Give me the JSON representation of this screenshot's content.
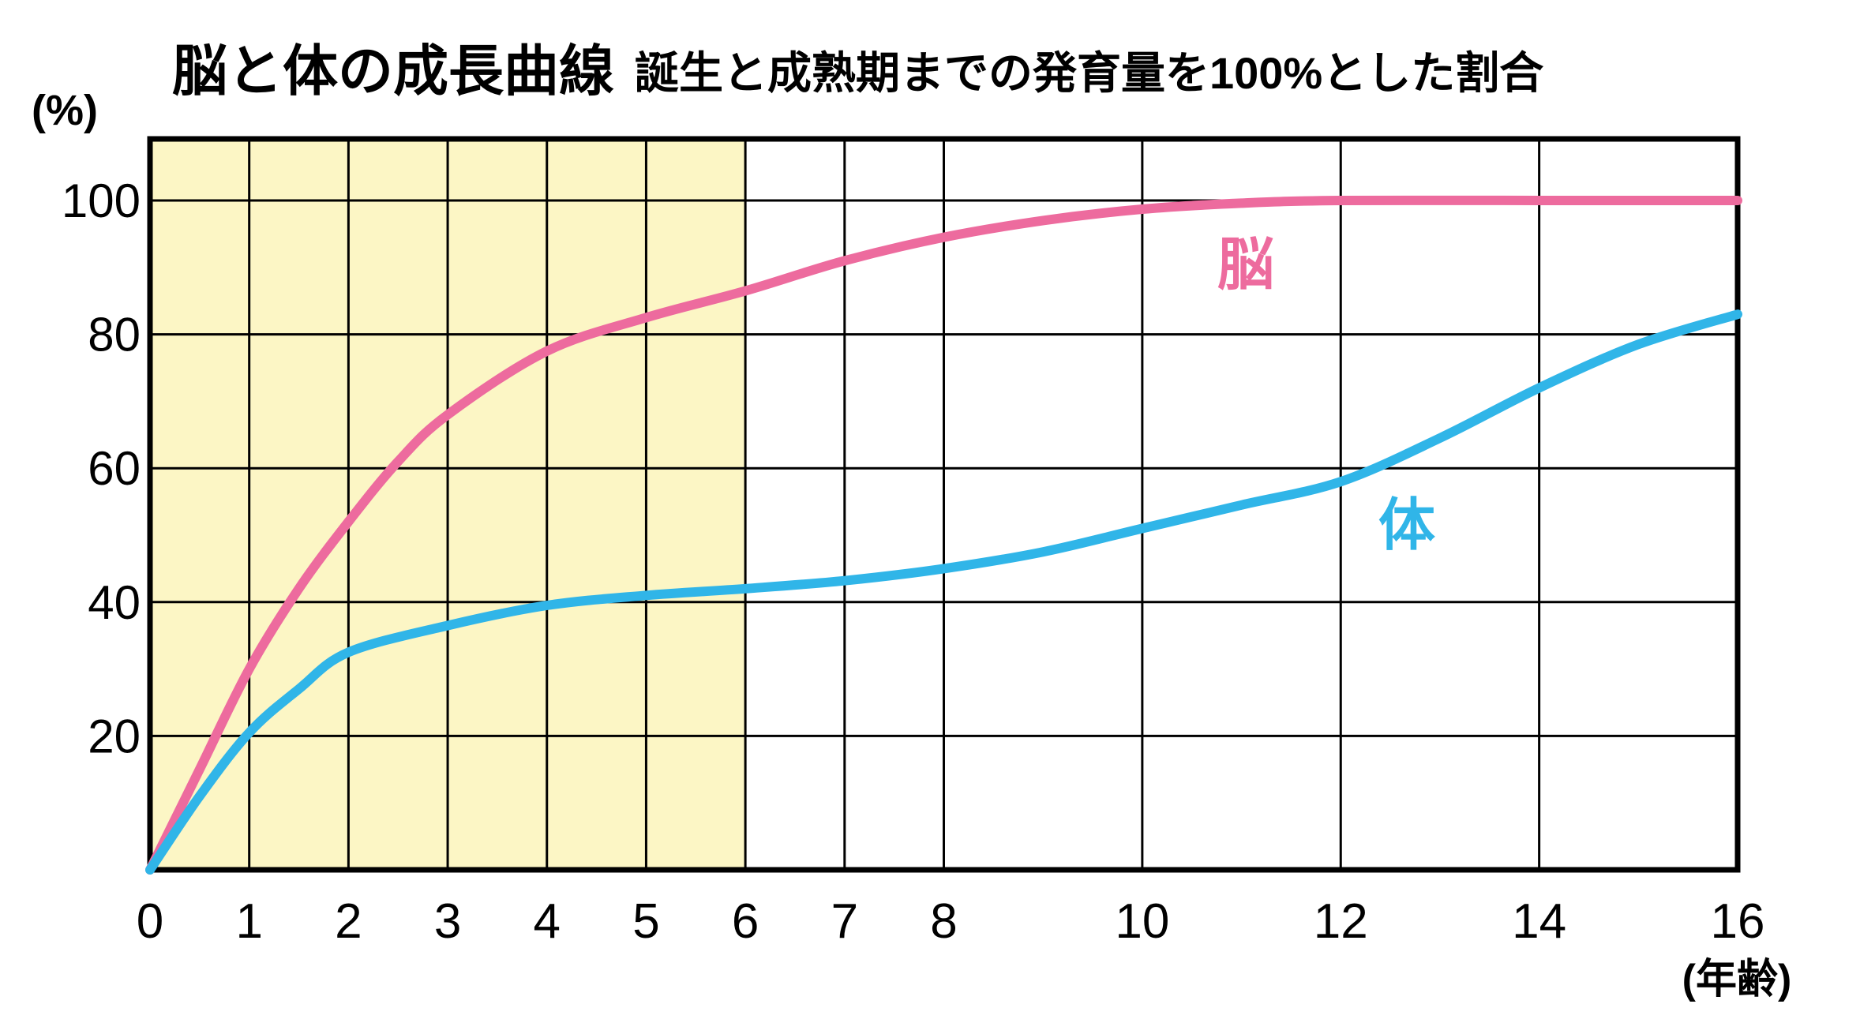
{
  "title": "脳と体の成長曲線",
  "subtitle": "誕生と成熟期までの発育量を100%とした割合",
  "chart_data": {
    "type": "line",
    "title": "脳と体の成長曲線",
    "subtitle": "誕生と成熟期までの発育量を100%とした割合",
    "x_axis": {
      "label": "(年齢)",
      "ticks": [
        0,
        1,
        2,
        3,
        4,
        5,
        6,
        7,
        8,
        10,
        12,
        14,
        16
      ],
      "range": [
        0,
        16
      ],
      "grid": true
    },
    "y_axis": {
      "label": "(%)",
      "ticks": [
        100,
        80,
        60,
        40,
        20
      ],
      "range": [
        0,
        100
      ],
      "grid": true
    },
    "shaded_region": {
      "x_start": 0,
      "x_end": 6,
      "color": "#fcf6c5"
    },
    "colors": {
      "brain": "#ed6b9e",
      "body": "#30b5e8",
      "grid": "#000000",
      "text": "#000000",
      "background": "#ffffff"
    },
    "series": [
      {
        "name": "脳",
        "color": "#ed6b9e",
        "points": [
          [
            0,
            0
          ],
          [
            0.5,
            15
          ],
          [
            1,
            30
          ],
          [
            1.5,
            42
          ],
          [
            2,
            52
          ],
          [
            2.5,
            61
          ],
          [
            3,
            68
          ],
          [
            4,
            77.5
          ],
          [
            5,
            82.5
          ],
          [
            6,
            86.5
          ],
          [
            7,
            91
          ],
          [
            8,
            94.5
          ],
          [
            9,
            97
          ],
          [
            10,
            98.7
          ],
          [
            11,
            99.6
          ],
          [
            12,
            100
          ],
          [
            14,
            100
          ],
          [
            16,
            100
          ]
        ]
      },
      {
        "name": "体",
        "color": "#30b5e8",
        "points": [
          [
            0,
            0
          ],
          [
            0.5,
            11
          ],
          [
            1,
            20.5
          ],
          [
            1.5,
            27
          ],
          [
            2,
            32.5
          ],
          [
            3,
            36.5
          ],
          [
            4,
            39.5
          ],
          [
            5,
            41
          ],
          [
            6,
            42
          ],
          [
            7,
            43.2
          ],
          [
            8,
            45
          ],
          [
            9,
            47.5
          ],
          [
            10,
            51
          ],
          [
            11,
            54.5
          ],
          [
            12,
            58
          ],
          [
            13,
            64.5
          ],
          [
            14,
            72
          ],
          [
            15,
            78.5
          ],
          [
            16,
            83
          ]
        ]
      }
    ]
  }
}
